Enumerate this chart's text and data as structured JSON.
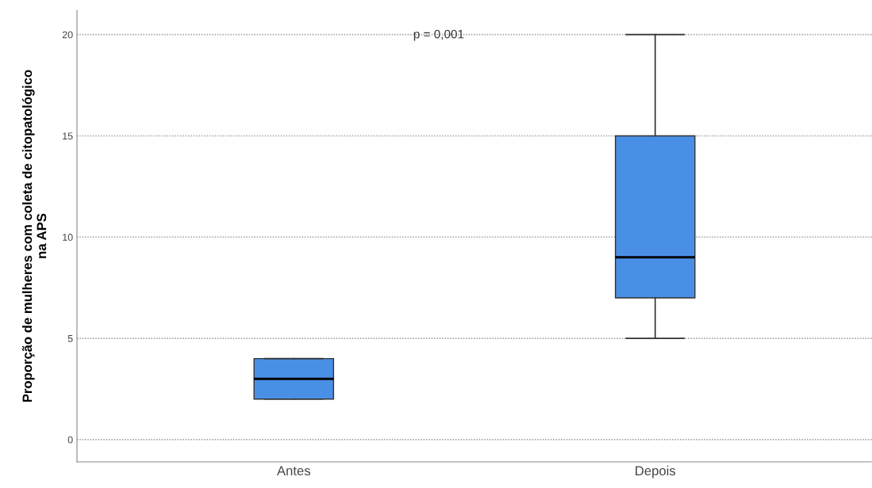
{
  "chart_data": {
    "type": "box",
    "ylabel": "Proporção de mulheres com coleta de citopatológico\nna APS",
    "categories": [
      "Antes",
      "Depois"
    ],
    "series": [
      {
        "color": "#4a8fe6",
        "boxes": [
          {
            "low": 2,
            "q1": 2,
            "median": 3,
            "q3": 4,
            "high": 4
          },
          {
            "low": 5,
            "q1": 7,
            "median": 9,
            "q3": 15,
            "high": 20
          }
        ]
      }
    ],
    "ylim": [
      -1.1,
      21.2
    ],
    "yticks": [
      0,
      5,
      10,
      15,
      20
    ],
    "grid": "y",
    "annotations": [
      "p = 0,001"
    ]
  }
}
